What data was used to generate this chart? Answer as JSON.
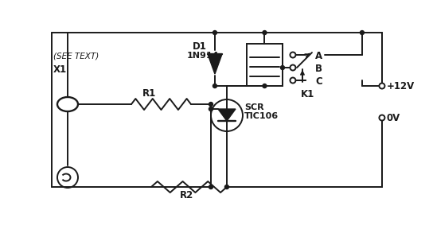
{
  "bg_color": "#ffffff",
  "line_color": "#1a1a1a",
  "line_width": 1.4,
  "components": {
    "X1_label": "X1",
    "see_text": "(SEE TEXT)",
    "R1_label": "R1",
    "R2_label": "R2",
    "D1_label": "D1",
    "D1_part": "1N914",
    "SCR_label": "SCR",
    "SCR_part": "TIC106",
    "K1_label": "K1",
    "relay_A": "A",
    "relay_B": "B",
    "relay_C": "C",
    "vplus": "+12V",
    "vgnd": "0V"
  }
}
